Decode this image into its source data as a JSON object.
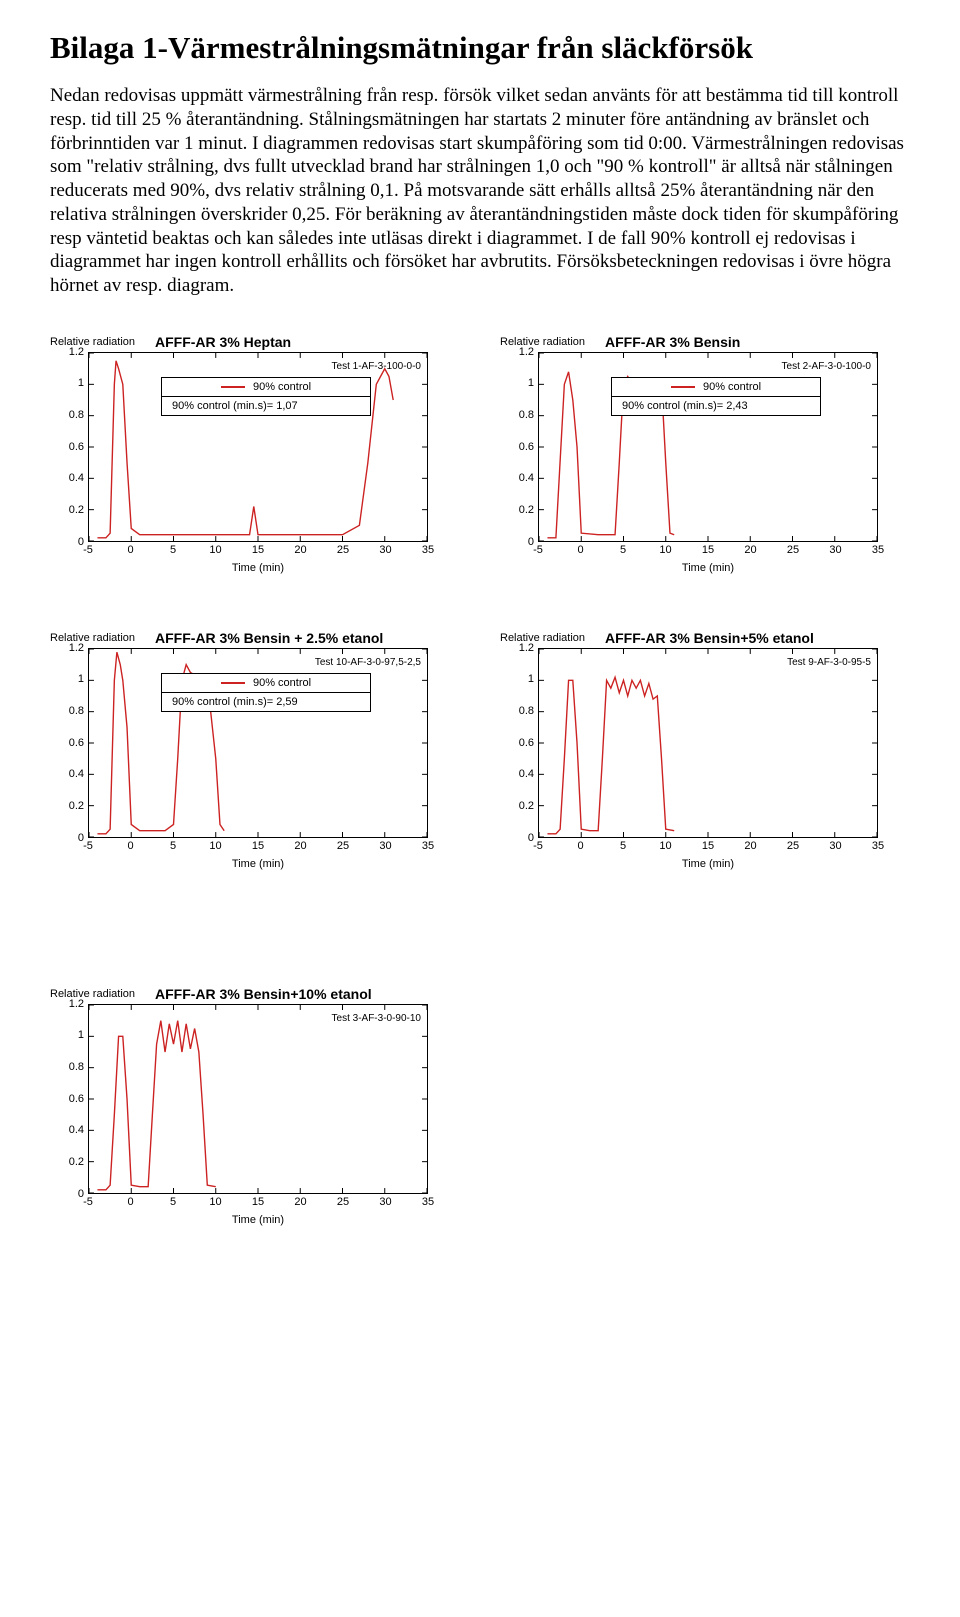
{
  "heading": "Bilaga 1-Värmestrålningsmätningar från släckförsök",
  "body": "Nedan redovisas uppmätt värmestrålning från resp. försök vilket sedan använts för att bestämma tid till kontroll resp. tid till 25 % återantändning. Stålningsmätningen har startats 2 minuter före antändning av bränslet och förbrinntiden var 1 minut. I diagrammen redovisas start skumpåföring som tid 0:00. Värmestrålningen redovisas som \"relativ strålning, dvs fullt utvecklad brand har strålningen 1,0 och \"90 % kontroll\" är alltså när stålningen reducerats med 90%, dvs relativ strålning 0,1. På motsvarande sätt erhålls alltså 25% återantändning när den relativa strålningen överskrider 0,25. För beräkning av återantändningstiden måste dock tiden för skumpåföring resp väntetid beaktas och kan således inte utläsas direkt i diagrammet. I de fall 90% kontroll ej redovisas i diagrammet har ingen kontroll erhållits och försöket har avbrutits. Försöksbeteckningen redovisas i övre högra hörnet av resp. diagram.",
  "axis": {
    "ylabel": "Relative radiation",
    "xlabel": "Time (min)",
    "yticks": [
      0,
      0.2,
      0.4,
      0.6,
      0.8,
      1,
      1.2
    ],
    "xticks": [
      -5,
      0,
      5,
      10,
      15,
      20,
      25,
      30,
      35
    ],
    "xlim": [
      -5,
      35
    ],
    "ylim": [
      0,
      1.2
    ],
    "line_color": "#cc2222",
    "border_color": "#000000",
    "background": "#ffffff"
  },
  "legend": {
    "row1": "90% control",
    "row2_prefix": "90% control (min.s)="
  },
  "charts": [
    {
      "title": "AFFF-AR 3% Heptan",
      "test_id": "Test 1-AF-3-100-0-0",
      "has_legend": true,
      "control_time": "1,07",
      "series": [
        [
          -4,
          0.02
        ],
        [
          -3,
          0.02
        ],
        [
          -2.5,
          0.05
        ],
        [
          -2,
          1.0
        ],
        [
          -1.8,
          1.15
        ],
        [
          -1.5,
          1.1
        ],
        [
          -1,
          1.0
        ],
        [
          -0.5,
          0.5
        ],
        [
          0,
          0.08
        ],
        [
          1,
          0.04
        ],
        [
          3,
          0.04
        ],
        [
          6,
          0.04
        ],
        [
          10,
          0.04
        ],
        [
          14,
          0.04
        ],
        [
          14.5,
          0.22
        ],
        [
          15,
          0.04
        ],
        [
          18,
          0.04
        ],
        [
          22,
          0.04
        ],
        [
          25,
          0.04
        ],
        [
          27,
          0.1
        ],
        [
          28,
          0.5
        ],
        [
          29,
          1.0
        ],
        [
          30,
          1.1
        ],
        [
          30.5,
          1.05
        ],
        [
          31,
          0.9
        ]
      ]
    },
    {
      "title": "AFFF-AR 3% Bensin",
      "test_id": "Test 2-AF-3-0-100-0",
      "has_legend": true,
      "control_time": "2,43",
      "series": [
        [
          -4,
          0.02
        ],
        [
          -3,
          0.02
        ],
        [
          -2,
          1.0
        ],
        [
          -1.5,
          1.08
        ],
        [
          -1,
          0.9
        ],
        [
          -0.5,
          0.6
        ],
        [
          0,
          0.05
        ],
        [
          2,
          0.04
        ],
        [
          4,
          0.04
        ],
        [
          4.5,
          0.5
        ],
        [
          5,
          1.0
        ],
        [
          5.5,
          1.05
        ],
        [
          6,
          1.0
        ],
        [
          7,
          1.02
        ],
        [
          8,
          1.0
        ],
        [
          9,
          1.02
        ],
        [
          9.5,
          1.0
        ],
        [
          10,
          0.5
        ],
        [
          10.5,
          0.05
        ],
        [
          11,
          0.04
        ]
      ]
    },
    {
      "title": "AFFF-AR 3% Bensin + 2.5% etanol",
      "test_id": "Test 10-AF-3-0-97,5-2,5",
      "has_legend": true,
      "control_time": "2,59",
      "series": [
        [
          -4,
          0.02
        ],
        [
          -3,
          0.02
        ],
        [
          -2.5,
          0.05
        ],
        [
          -2,
          1.0
        ],
        [
          -1.7,
          1.18
        ],
        [
          -1.3,
          1.1
        ],
        [
          -1,
          1.0
        ],
        [
          -0.5,
          0.7
        ],
        [
          0,
          0.08
        ],
        [
          1,
          0.04
        ],
        [
          3,
          0.04
        ],
        [
          4,
          0.04
        ],
        [
          5,
          0.08
        ],
        [
          5.5,
          0.5
        ],
        [
          6,
          1.0
        ],
        [
          6.5,
          1.1
        ],
        [
          7,
          1.05
        ],
        [
          8,
          1.02
        ],
        [
          9,
          1.0
        ],
        [
          10,
          0.5
        ],
        [
          10.5,
          0.08
        ],
        [
          11,
          0.04
        ]
      ]
    },
    {
      "title": "AFFF-AR 3% Bensin+5% etanol",
      "test_id": "Test 9-AF-3-0-95-5",
      "has_legend": false,
      "control_time": "",
      "series": [
        [
          -4,
          0.02
        ],
        [
          -3,
          0.02
        ],
        [
          -2.5,
          0.05
        ],
        [
          -2,
          0.5
        ],
        [
          -1.5,
          1.0
        ],
        [
          -1,
          1.0
        ],
        [
          -0.5,
          0.6
        ],
        [
          0,
          0.05
        ],
        [
          1,
          0.04
        ],
        [
          2,
          0.04
        ],
        [
          2.5,
          0.5
        ],
        [
          3,
          1.0
        ],
        [
          3.5,
          0.95
        ],
        [
          4,
          1.02
        ],
        [
          4.5,
          0.92
        ],
        [
          5,
          1.0
        ],
        [
          5.5,
          0.9
        ],
        [
          6,
          1.0
        ],
        [
          6.5,
          0.95
        ],
        [
          7,
          1.0
        ],
        [
          7.5,
          0.9
        ],
        [
          8,
          0.98
        ],
        [
          8.5,
          0.88
        ],
        [
          9,
          0.9
        ],
        [
          9.5,
          0.5
        ],
        [
          10,
          0.05
        ],
        [
          11,
          0.04
        ]
      ]
    },
    {
      "title": "AFFF-AR 3% Bensin+10% etanol",
      "test_id": "Test 3-AF-3-0-90-10",
      "has_legend": false,
      "control_time": "",
      "series": [
        [
          -4,
          0.02
        ],
        [
          -3,
          0.02
        ],
        [
          -2.5,
          0.05
        ],
        [
          -2,
          0.5
        ],
        [
          -1.5,
          1.0
        ],
        [
          -1,
          1.0
        ],
        [
          -0.5,
          0.6
        ],
        [
          0,
          0.05
        ],
        [
          1,
          0.04
        ],
        [
          2,
          0.04
        ],
        [
          2.5,
          0.5
        ],
        [
          3,
          0.95
        ],
        [
          3.5,
          1.1
        ],
        [
          4,
          0.9
        ],
        [
          4.5,
          1.08
        ],
        [
          5,
          0.95
        ],
        [
          5.5,
          1.1
        ],
        [
          6,
          0.9
        ],
        [
          6.5,
          1.08
        ],
        [
          7,
          0.92
        ],
        [
          7.5,
          1.05
        ],
        [
          8,
          0.9
        ],
        [
          8.5,
          0.5
        ],
        [
          9,
          0.05
        ],
        [
          10,
          0.04
        ]
      ]
    }
  ]
}
